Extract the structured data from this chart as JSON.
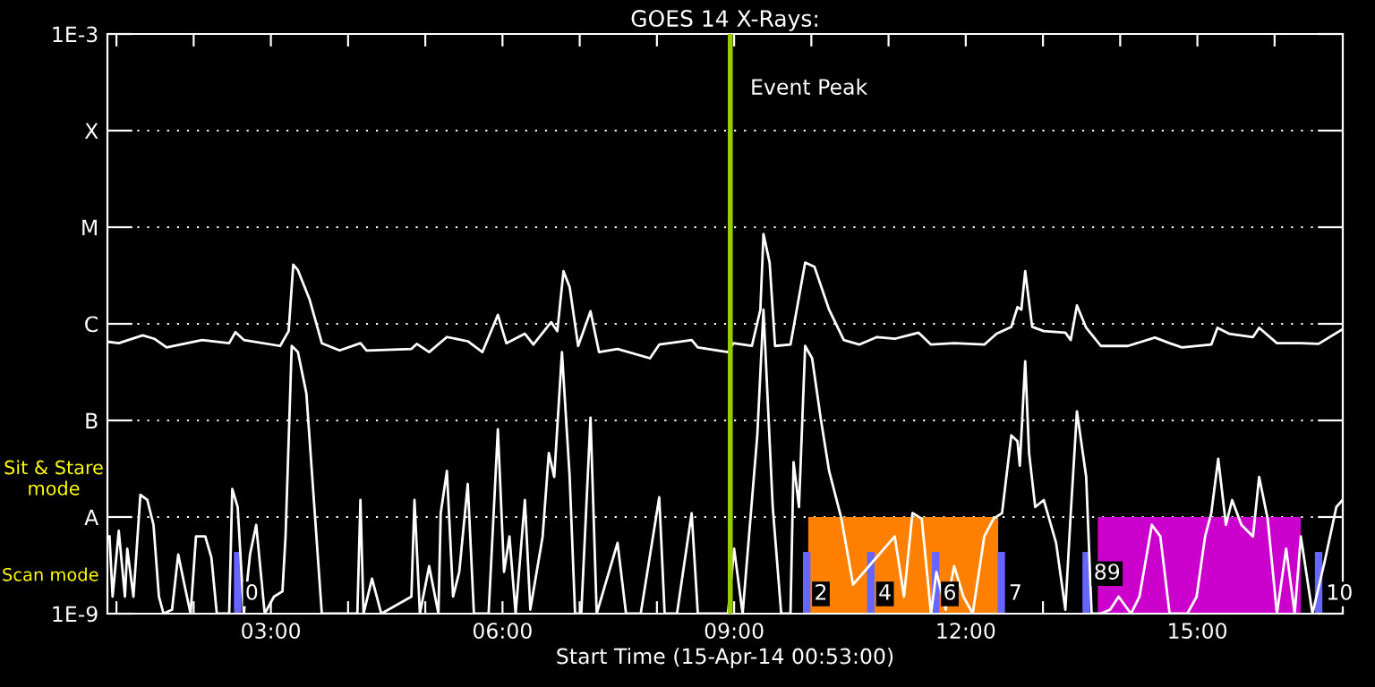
{
  "chart_data": {
    "type": "line",
    "title": "GOES 14 X-Rays:",
    "xlabel": "Start Time (15-Apr-14 00:53:00)",
    "annotations": [
      "Sit & Stare\nmode",
      "Scan mode",
      {
        "text": "0",
        "x": 2.57,
        "y": 1.6e-09
      },
      {
        "text": "2",
        "x": 9.94,
        "y": 1.6e-09
      },
      {
        "text": "4",
        "x": 10.77,
        "y": 1.6e-09
      },
      {
        "text": "6",
        "x": 11.61,
        "y": 1.6e-09
      },
      {
        "text": "7",
        "x": 12.46,
        "y": 1.6e-09
      },
      {
        "text": "89",
        "x": 13.56,
        "y": 2.6e-09
      },
      {
        "text": "10",
        "x": 16.57,
        "y": 1.6e-09
      }
    ],
    "log": "y",
    "grid": "y",
    "legend": false,
    "marker": "none",
    "line_style": "solid",
    "xlim": [
      0.883,
      16.883
    ],
    "xticks": [
      {
        "value": 1,
        "label": null
      },
      {
        "value": 2,
        "label": null
      },
      {
        "value": 3,
        "label": "03:00"
      },
      {
        "value": 4,
        "label": null
      },
      {
        "value": 5,
        "label": null
      },
      {
        "value": 6,
        "label": "06:00"
      },
      {
        "value": 7,
        "label": null
      },
      {
        "value": 8,
        "label": null
      },
      {
        "value": 9,
        "label": "09:00"
      },
      {
        "value": 10,
        "label": null
      },
      {
        "value": 11,
        "label": null
      },
      {
        "value": 12,
        "label": "12:00"
      },
      {
        "value": 13,
        "label": null
      },
      {
        "value": 14,
        "label": null
      },
      {
        "value": 15,
        "label": "15:00"
      },
      {
        "value": 16,
        "label": null
      }
    ],
    "ylim": [
      1e-09,
      0.001
    ],
    "yticks": [
      {
        "value": 1e-09,
        "label": "1E-9"
      },
      {
        "value": 1e-08,
        "label": "A"
      },
      {
        "value": 1e-07,
        "label": "B"
      },
      {
        "value": 1e-06,
        "label": "C"
      },
      {
        "value": 1e-05,
        "label": "M"
      },
      {
        "value": 0.0001,
        "label": "X"
      },
      {
        "value": 0.001,
        "label": "1E-3"
      }
    ],
    "ref_lines": [
      {
        "axis": "x",
        "value": 8.95,
        "label": "Event Peak",
        "color": "#99cc00"
      },
      {
        "axis": "x",
        "value": 2.57,
        "label": null,
        "color": "#6666ff"
      },
      {
        "axis": "x",
        "value": 9.94,
        "label": null,
        "color": "#6666ff"
      },
      {
        "axis": "x",
        "value": 10.77,
        "label": null,
        "color": "#6666ff"
      },
      {
        "axis": "x",
        "value": 11.61,
        "label": null,
        "color": "#6666ff"
      },
      {
        "axis": "x",
        "value": 12.46,
        "label": null,
        "color": "#6666ff"
      },
      {
        "axis": "x",
        "value": 13.56,
        "label": null,
        "color": "#6666ff"
      },
      {
        "axis": "x",
        "value": 16.57,
        "label": null,
        "color": "#6666ff"
      }
    ],
    "bands": [
      {
        "axis": "x",
        "from": 9.96,
        "to": 12.42,
        "label": null,
        "color": "#ff8000"
      },
      {
        "axis": "x",
        "from": 13.71,
        "to": 16.34,
        "label": null,
        "color": "#cc00cc"
      }
    ],
    "series": [
      {
        "color": "#ffffff",
        "x": [
          0.9,
          1.03,
          1.34,
          1.49,
          1.65,
          2.11,
          2.46,
          2.54,
          2.65,
          3.12,
          3.23,
          3.29,
          3.35,
          3.5,
          3.66,
          3.89,
          4.16,
          4.24,
          4.82,
          4.89,
          5.05,
          5.28,
          5.55,
          5.74,
          5.94,
          6.05,
          6.29,
          6.4,
          6.63,
          6.71,
          6.79,
          6.87,
          6.98,
          7.14,
          7.25,
          7.49,
          7.91,
          8.03,
          8.45,
          8.53,
          8.92,
          8.99,
          9.23,
          9.34,
          9.38,
          9.46,
          9.53,
          9.73,
          9.92,
          10.04,
          10.23,
          10.42,
          10.62,
          10.85,
          11.08,
          11.39,
          11.55,
          11.85,
          12.24,
          12.4,
          12.59,
          12.67,
          12.72,
          12.77,
          12.86,
          13.01,
          13.29,
          13.36,
          13.44,
          13.56,
          13.75,
          14.1,
          14.45,
          14.64,
          14.8,
          15.18,
          15.26,
          15.41,
          15.72,
          15.8,
          16.03,
          16.34,
          16.57,
          16.88
        ],
        "values": [
          6.5e-07,
          6.3e-07,
          7.6e-07,
          7e-07,
          5.7e-07,
          6.8e-07,
          6.3e-07,
          8.2e-07,
          6.8e-07,
          5.9e-07,
          8.4e-07,
          4.1e-06,
          3.6e-06,
          1.8e-06,
          6.3e-07,
          5.3e-07,
          6.3e-07,
          5.3e-07,
          5.5e-07,
          6.2e-07,
          5.1e-07,
          7.3e-07,
          6.6e-07,
          5.1e-07,
          1.24e-06,
          6.3e-07,
          7.9e-07,
          6.1e-07,
          1.04e-06,
          8.4e-07,
          3.5e-06,
          2.4e-06,
          5.9e-07,
          1.35e-06,
          5.1e-07,
          5.5e-07,
          4.4e-07,
          6.1e-07,
          6.8e-07,
          5.7e-07,
          5.1e-07,
          6.3e-07,
          5.9e-07,
          1.4e-06,
          8.5e-06,
          4.3e-06,
          5.9e-07,
          6.1e-07,
          4.3e-06,
          3.9e-06,
          1.4e-06,
          6.8e-07,
          6.1e-07,
          7.3e-07,
          7e-07,
          8.1e-07,
          6.1e-07,
          6.3e-07,
          6.1e-07,
          7.9e-07,
          9.3e-07,
          1.49e-06,
          1.4e-06,
          3.5e-06,
          9.3e-07,
          8.4e-07,
          8.1e-07,
          6.8e-07,
          1.55e-06,
          9.1e-07,
          5.9e-07,
          5.9e-07,
          7.2e-07,
          6.3e-07,
          5.7e-07,
          6.1e-07,
          9.1e-07,
          7.9e-07,
          7.3e-07,
          9.1e-07,
          6.3e-07,
          6.3e-07,
          6.2e-07,
          8.8e-07
        ]
      },
      {
        "color": "#ffffff",
        "x": [
          0.91,
          0.95,
          1.03,
          1.11,
          1.14,
          1.22,
          1.31,
          1.4,
          1.48,
          1.55,
          1.61,
          1.72,
          1.8,
          1.88,
          1.96,
          2.03,
          2.15,
          2.23,
          2.3,
          2.46,
          2.5,
          2.57,
          2.65,
          2.73,
          2.81,
          2.92,
          3.04,
          3.15,
          3.19,
          3.27,
          3.35,
          3.46,
          3.66,
          4.12,
          4.16,
          4.2,
          4.31,
          4.43,
          4.82,
          4.86,
          4.93,
          5.05,
          5.17,
          5.2,
          5.28,
          5.36,
          5.44,
          5.55,
          5.63,
          5.82,
          5.94,
          6.02,
          6.09,
          6.17,
          6.29,
          6.36,
          6.52,
          6.6,
          6.67,
          6.77,
          6.87,
          6.94,
          7.02,
          7.14,
          7.22,
          7.49,
          7.6,
          7.79,
          8.03,
          8.1,
          8.26,
          8.45,
          8.53,
          8.92,
          9.0,
          9.11,
          9.3,
          9.38,
          9.5,
          9.61,
          9.73,
          9.77,
          9.84,
          9.92,
          10.01,
          10.12,
          10.23,
          10.39,
          10.54,
          11.08,
          11.2,
          11.31,
          11.43,
          11.55,
          11.62,
          11.74,
          11.85,
          11.97,
          12.09,
          12.24,
          12.36,
          12.47,
          12.59,
          12.67,
          12.7,
          12.77,
          12.82,
          12.9,
          13.01,
          13.17,
          13.29,
          13.36,
          13.44,
          13.56,
          13.63,
          13.75,
          13.87,
          13.98,
          14.14,
          14.25,
          14.41,
          14.52,
          14.64,
          14.87,
          14.99,
          15.1,
          15.18,
          15.27,
          15.37,
          15.45,
          15.57,
          15.72,
          15.8,
          15.91,
          16.03,
          16.15,
          16.26,
          16.34,
          16.49,
          16.65,
          16.8,
          16.88
        ],
        "values": [
          6.3e-09,
          1.5e-09,
          7.2e-09,
          1.5e-09,
          4.7e-09,
          1.5e-09,
          1.7e-08,
          1.5e-08,
          8.3e-09,
          1.5e-09,
          1e-09,
          1.1e-09,
          4.1e-09,
          2e-09,
          1e-09,
          6.3e-09,
          6.3e-09,
          3.8e-09,
          1e-09,
          1e-09,
          1.95e-08,
          1.27e-08,
          1e-09,
          4.1e-09,
          8.3e-09,
          1e-09,
          1.5e-09,
          1.7e-09,
          6.3e-09,
          5.9e-07,
          5.1e-07,
          1.9e-07,
          1e-09,
          1e-09,
          1.5e-08,
          1e-09,
          2.3e-09,
          1e-09,
          1.5e-09,
          1.5e-08,
          1e-09,
          3.1e-09,
          1e-09,
          1.1e-08,
          3e-08,
          1.5e-09,
          2.7e-09,
          2.2e-08,
          1e-09,
          1e-09,
          8.1e-08,
          2.7e-09,
          6.3e-09,
          1e-09,
          1.5e-08,
          1.1e-09,
          6.3e-09,
          4.6e-08,
          2.6e-08,
          5.1e-07,
          2.6e-08,
          1e-09,
          1e-09,
          1.07e-07,
          1e-09,
          5.4e-09,
          1e-09,
          1e-09,
          1.6e-08,
          1e-09,
          1e-09,
          1.1e-08,
          1e-09,
          1e-09,
          4.7e-09,
          1e-09,
          7e-08,
          1.4e-06,
          1.27e-08,
          1e-09,
          1e-09,
          3.7e-08,
          1.27e-08,
          5.9e-07,
          4.4e-07,
          1.07e-07,
          3e-08,
          9.6e-09,
          2e-09,
          6.3e-09,
          1.5e-09,
          1.1e-08,
          9.6e-09,
          1e-09,
          2.7e-09,
          1.1e-09,
          3.1e-09,
          1.5e-09,
          1e-09,
          6.3e-09,
          9.6e-09,
          1.1e-08,
          7e-08,
          6.1e-08,
          3.4e-08,
          4.1e-07,
          4.6e-08,
          1.27e-08,
          1.5e-08,
          5.4e-09,
          1.1e-09,
          1.1e-08,
          1.24e-07,
          2.6e-08,
          1e-09,
          1e-09,
          1.1e-09,
          1.5e-09,
          1e-09,
          1.5e-09,
          8.3e-09,
          6.3e-09,
          1e-09,
          1e-09,
          1.5e-09,
          6.3e-09,
          1.1e-08,
          4e-08,
          8.3e-09,
          1.5e-08,
          8.3e-09,
          6.3e-09,
          2.6e-08,
          9.6e-09,
          1e-09,
          4.7e-09,
          1e-09,
          6.3e-09,
          1e-09,
          3.5e-09,
          1.27e-08,
          1.5e-08
        ]
      }
    ]
  }
}
